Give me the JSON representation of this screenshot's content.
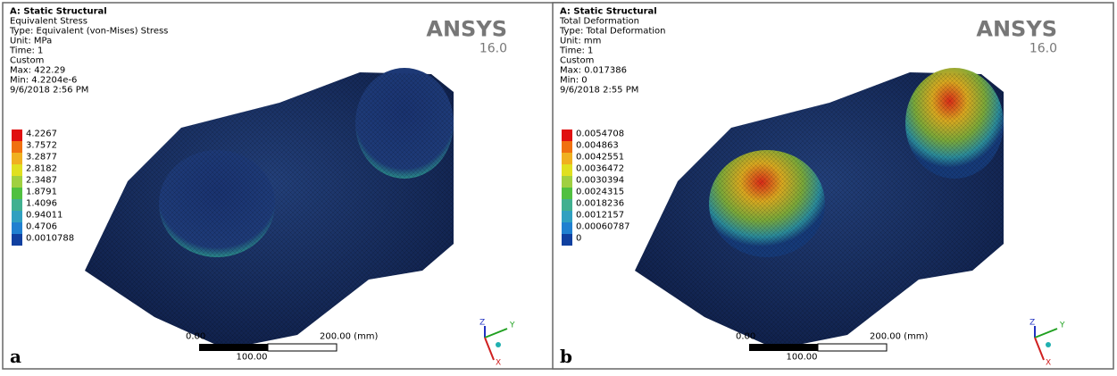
{
  "panels": [
    {
      "label": "a",
      "header": [
        "A: Static Structural",
        "Equivalent Stress",
        "Type: Equivalent (von-Mises) Stress",
        "Unit: MPa",
        "Time: 1",
        "Custom",
        "Max: 422.29",
        "Min: 4.2204e-6",
        "9/6/2018 2:56 PM"
      ],
      "legend": [
        "4.2267",
        "3.7572",
        "3.2877",
        "2.8182",
        "2.3487",
        "1.8791",
        "1.4096",
        "0.94011",
        "0.4706",
        "0.0010788"
      ],
      "scale": {
        "start": "0.00",
        "mid": "100.00",
        "end": "200.00 (mm)"
      },
      "brand": "ANSYS",
      "version": "16.0",
      "axes": [
        "Z",
        "Y",
        "X"
      ]
    },
    {
      "label": "b",
      "header": [
        "A: Static Structural",
        "Total Deformation",
        "Type: Total Deformation",
        "Unit: mm",
        "Time: 1",
        "Custom",
        "Max: 0.017386",
        "Min: 0",
        "9/6/2018 2:55 PM"
      ],
      "legend": [
        "0.0054708",
        "0.004863",
        "0.0042551",
        "0.0036472",
        "0.0030394",
        "0.0024315",
        "0.0018236",
        "0.0012157",
        "0.00060787",
        "0"
      ],
      "scale": {
        "start": "0.00",
        "mid": "100.00",
        "end": "200.00 (mm)"
      },
      "brand": "ANSYS",
      "version": "16.0",
      "axes": [
        "Z",
        "Y",
        "X"
      ]
    }
  ]
}
